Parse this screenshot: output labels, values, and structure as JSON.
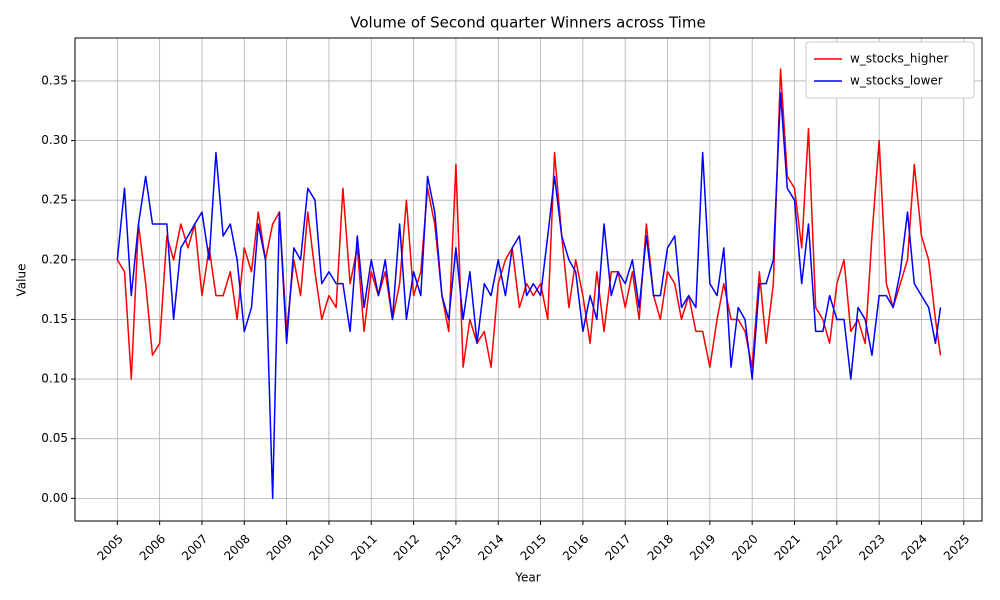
{
  "chart_data": {
    "type": "line",
    "title": "Volume of Second quarter Winners across Time",
    "xlabel": "Year",
    "ylabel": "Value",
    "x": [
      2005.0,
      2005.17,
      2005.33,
      2005.5,
      2005.67,
      2005.83,
      2006.0,
      2006.17,
      2006.33,
      2006.5,
      2006.67,
      2006.83,
      2007.0,
      2007.17,
      2007.33,
      2007.5,
      2007.67,
      2007.83,
      2008.0,
      2008.17,
      2008.33,
      2008.5,
      2008.67,
      2008.83,
      2009.0,
      2009.17,
      2009.33,
      2009.5,
      2009.67,
      2009.83,
      2010.0,
      2010.17,
      2010.33,
      2010.5,
      2010.67,
      2010.83,
      2011.0,
      2011.17,
      2011.33,
      2011.5,
      2011.67,
      2011.83,
      2012.0,
      2012.17,
      2012.33,
      2012.5,
      2012.67,
      2012.83,
      2013.0,
      2013.17,
      2013.33,
      2013.5,
      2013.67,
      2013.83,
      2014.0,
      2014.17,
      2014.33,
      2014.5,
      2014.67,
      2014.83,
      2015.0,
      2015.17,
      2015.33,
      2015.5,
      2015.67,
      2015.83,
      2016.0,
      2016.17,
      2016.33,
      2016.5,
      2016.67,
      2016.83,
      2017.0,
      2017.17,
      2017.33,
      2017.5,
      2017.67,
      2017.83,
      2018.0,
      2018.17,
      2018.33,
      2018.5,
      2018.67,
      2018.83,
      2019.0,
      2019.17,
      2019.33,
      2019.5,
      2019.67,
      2019.83,
      2020.0,
      2020.17,
      2020.33,
      2020.5,
      2020.67,
      2020.83,
      2021.0,
      2021.17,
      2021.33,
      2021.5,
      2021.67,
      2021.83,
      2022.0,
      2022.17,
      2022.33,
      2022.5,
      2022.67,
      2022.83,
      2023.0,
      2023.17,
      2023.33,
      2023.5,
      2023.67,
      2023.83,
      2024.0,
      2024.17,
      2024.33,
      2024.45
    ],
    "series": [
      {
        "name": "w_stocks_higher",
        "color": "#ff0000",
        "values": [
          0.2,
          0.19,
          0.1,
          0.23,
          0.18,
          0.12,
          0.13,
          0.22,
          0.2,
          0.23,
          0.21,
          0.23,
          0.17,
          0.21,
          0.17,
          0.17,
          0.19,
          0.15,
          0.21,
          0.19,
          0.24,
          0.2,
          0.23,
          0.24,
          0.14,
          0.2,
          0.17,
          0.24,
          0.19,
          0.15,
          0.17,
          0.16,
          0.26,
          0.18,
          0.21,
          0.14,
          0.19,
          0.17,
          0.19,
          0.15,
          0.18,
          0.25,
          0.17,
          0.19,
          0.26,
          0.23,
          0.17,
          0.14,
          0.28,
          0.11,
          0.15,
          0.13,
          0.14,
          0.11,
          0.18,
          0.2,
          0.21,
          0.16,
          0.18,
          0.17,
          0.18,
          0.15,
          0.29,
          0.22,
          0.16,
          0.2,
          0.17,
          0.13,
          0.19,
          0.14,
          0.19,
          0.19,
          0.16,
          0.19,
          0.15,
          0.23,
          0.17,
          0.15,
          0.19,
          0.18,
          0.15,
          0.17,
          0.14,
          0.14,
          0.11,
          0.15,
          0.18,
          0.15,
          0.15,
          0.14,
          0.11,
          0.19,
          0.13,
          0.18,
          0.36,
          0.27,
          0.26,
          0.21,
          0.31,
          0.16,
          0.15,
          0.13,
          0.18,
          0.2,
          0.14,
          0.15,
          0.13,
          0.22,
          0.3,
          0.18,
          0.16,
          0.18,
          0.2,
          0.28,
          0.22,
          0.2,
          0.15,
          0.12
        ]
      },
      {
        "name": "w_stocks_lower",
        "color": "#0000ff",
        "values": [
          0.2,
          0.26,
          0.17,
          0.23,
          0.27,
          0.23,
          0.23,
          0.23,
          0.15,
          0.21,
          0.22,
          0.23,
          0.24,
          0.2,
          0.29,
          0.22,
          0.23,
          0.2,
          0.14,
          0.16,
          0.23,
          0.2,
          0.0,
          0.24,
          0.13,
          0.21,
          0.2,
          0.26,
          0.25,
          0.18,
          0.19,
          0.18,
          0.18,
          0.14,
          0.22,
          0.16,
          0.2,
          0.17,
          0.2,
          0.15,
          0.23,
          0.15,
          0.19,
          0.17,
          0.27,
          0.24,
          0.17,
          0.15,
          0.21,
          0.15,
          0.19,
          0.13,
          0.18,
          0.17,
          0.2,
          0.17,
          0.21,
          0.22,
          0.17,
          0.18,
          0.17,
          0.22,
          0.27,
          0.22,
          0.2,
          0.19,
          0.14,
          0.17,
          0.15,
          0.23,
          0.17,
          0.19,
          0.18,
          0.2,
          0.16,
          0.22,
          0.17,
          0.17,
          0.21,
          0.22,
          0.16,
          0.17,
          0.16,
          0.29,
          0.18,
          0.17,
          0.21,
          0.11,
          0.16,
          0.15,
          0.1,
          0.18,
          0.18,
          0.2,
          0.34,
          0.26,
          0.25,
          0.18,
          0.23,
          0.14,
          0.14,
          0.17,
          0.15,
          0.15,
          0.1,
          0.16,
          0.15,
          0.12,
          0.17,
          0.17,
          0.16,
          0.19,
          0.24,
          0.18,
          0.17,
          0.16,
          0.13,
          0.16
        ]
      }
    ],
    "xlim": [
      2004.0,
      2025.43
    ],
    "ylim": [
      -0.019,
      0.386
    ],
    "xticks": [
      2005,
      2006,
      2007,
      2008,
      2009,
      2010,
      2011,
      2012,
      2013,
      2014,
      2015,
      2016,
      2017,
      2018,
      2019,
      2020,
      2021,
      2022,
      2023,
      2024,
      2025
    ],
    "yticks": [
      {
        "value": 0,
        "label": "0.00"
      },
      {
        "value": 0.05,
        "label": "0.05"
      },
      {
        "value": 0.1,
        "label": "0.10"
      },
      {
        "value": 0.15,
        "label": "0.15"
      },
      {
        "value": 0.2,
        "label": "0.20"
      },
      {
        "value": 0.25,
        "label": "0.25"
      },
      {
        "value": 0.3,
        "label": "0.30"
      },
      {
        "value": 0.35,
        "label": "0.35"
      }
    ],
    "grid": true,
    "legend": "upper right"
  }
}
